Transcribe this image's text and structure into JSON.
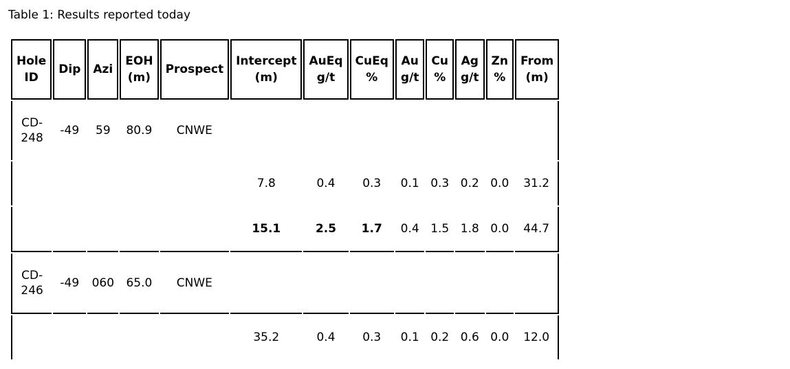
{
  "caption": "Table 1: Results reported today",
  "headers": [
    [
      "Hole",
      "ID"
    ],
    [
      "Dip",
      ""
    ],
    [
      "Azi",
      ""
    ],
    [
      "EOH",
      "(m)"
    ],
    [
      "Prospect",
      ""
    ],
    [
      "Intercept",
      "(m)"
    ],
    [
      "AuEq",
      "g/t"
    ],
    [
      "CuEq",
      "%"
    ],
    [
      "Au",
      "g/t"
    ],
    [
      "Cu",
      "%"
    ],
    [
      "Ag",
      "g/t"
    ],
    [
      "Zn",
      "%"
    ],
    [
      "From",
      "(m)"
    ]
  ],
  "rows": [
    {
      "hole": [
        "CD-",
        "248"
      ],
      "dip": "-49",
      "azi": "59",
      "eoh": "80.9",
      "prospect": "CNWE"
    },
    {
      "intercept": "7.8",
      "aueq": "0.4",
      "cueq": "0.3",
      "au": "0.1",
      "cu": "0.3",
      "ag": "0.2",
      "zn": "0.0",
      "from": "31.2"
    },
    {
      "intercept": "15.1",
      "aueq": "2.5",
      "cueq": "1.7",
      "au": "0.4",
      "cu": "1.5",
      "ag": "1.8",
      "zn": "0.0",
      "from": "44.7"
    },
    {
      "hole": [
        "CD-",
        "246"
      ],
      "dip": "-49",
      "azi": "060",
      "eoh": "65.0",
      "prospect": "CNWE"
    },
    {
      "intercept": "35.2",
      "aueq": "0.4",
      "cueq": "0.3",
      "au": "0.1",
      "cu": "0.2",
      "ag": "0.6",
      "zn": "0.0",
      "from": "12.0"
    }
  ]
}
